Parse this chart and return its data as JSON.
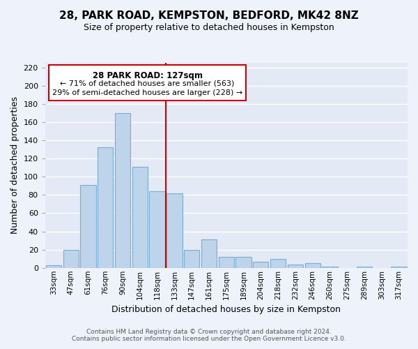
{
  "title": "28, PARK ROAD, KEMPSTON, BEDFORD, MK42 8NZ",
  "subtitle": "Size of property relative to detached houses in Kempston",
  "xlabel": "Distribution of detached houses by size in Kempston",
  "ylabel": "Number of detached properties",
  "bar_labels": [
    "33sqm",
    "47sqm",
    "61sqm",
    "76sqm",
    "90sqm",
    "104sqm",
    "118sqm",
    "133sqm",
    "147sqm",
    "161sqm",
    "175sqm",
    "189sqm",
    "204sqm",
    "218sqm",
    "232sqm",
    "246sqm",
    "260sqm",
    "275sqm",
    "289sqm",
    "303sqm",
    "317sqm"
  ],
  "bar_values": [
    3,
    20,
    91,
    132,
    170,
    111,
    84,
    82,
    20,
    31,
    12,
    12,
    7,
    10,
    4,
    5,
    1,
    0,
    1,
    0,
    1
  ],
  "bar_color": "#bdd4ea",
  "bar_edge_color": "#7aadd4",
  "vline_color": "#cc0000",
  "ylim": [
    0,
    225
  ],
  "yticks": [
    0,
    20,
    40,
    60,
    80,
    100,
    120,
    140,
    160,
    180,
    200,
    220
  ],
  "annotation_title": "28 PARK ROAD: 127sqm",
  "annotation_line1": "← 71% of detached houses are smaller (563)",
  "annotation_line2": "29% of semi-detached houses are larger (228) →",
  "annotation_box_color": "#ffffff",
  "annotation_box_edge": "#cc0000",
  "footer_line1": "Contains HM Land Registry data © Crown copyright and database right 2024.",
  "footer_line2": "Contains public sector information licensed under the Open Government Licence v3.0.",
  "bg_color": "#eef2fa",
  "plot_bg_color": "#e4eaf5"
}
